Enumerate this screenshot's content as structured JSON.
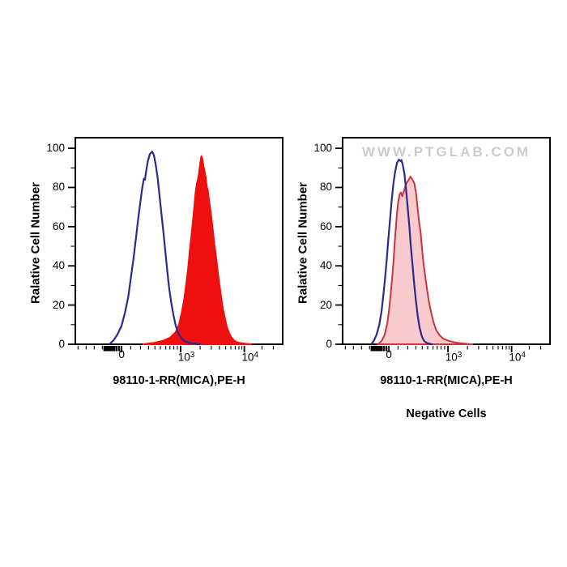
{
  "figure": {
    "background": "#ffffff",
    "frame_color": "#000000",
    "text_color": "#000000",
    "watermark_color": "#cbcbcb"
  },
  "chart_data": [
    {
      "type": "area",
      "panel": "left",
      "title": "",
      "xlabel": "98110-1-RR(MICA),PE-H",
      "ylabel": "Ralative Cell Number",
      "caption": "",
      "watermark": "",
      "ylim": [
        0,
        105
      ],
      "grid": "off",
      "legend": "none",
      "x_axis": {
        "scale": "biexponential-log",
        "major_ticks": [
          {
            "f": 0.223,
            "base": "0",
            "exp": ""
          },
          {
            "f": 0.508,
            "base": "10",
            "exp": "3"
          },
          {
            "f": 0.815,
            "base": "10",
            "exp": "4"
          }
        ],
        "minor_ticks": [
          0.013,
          0.052,
          0.091,
          0.13,
          0.267,
          0.314,
          0.353,
          0.384,
          0.41,
          0.436,
          0.456,
          0.475,
          0.492,
          0.602,
          0.656,
          0.695,
          0.725,
          0.75,
          0.771,
          0.789,
          0.803,
          0.9,
          0.955
        ],
        "cluster_ticks": [
          0.14,
          0.149,
          0.157,
          0.164,
          0.171,
          0.179,
          0.188,
          0.199,
          0.211
        ]
      },
      "y_axis": {
        "ticks": [
          0,
          20,
          40,
          60,
          80,
          100
        ],
        "minor_ticks": [
          10,
          30,
          50,
          70,
          90
        ]
      },
      "series": [
        {
          "name": "red-filled-histogram",
          "style": "filled",
          "stroke": "#ee0f0f",
          "stroke_width": 2,
          "fill": "#ee0f0f",
          "fill_opacity": 1,
          "points": [
            [
              0.327,
              0
            ],
            [
              0.379,
              0.7
            ],
            [
              0.425,
              1.8
            ],
            [
              0.457,
              3.4
            ],
            [
              0.483,
              6
            ],
            [
              0.5,
              10
            ],
            [
              0.513,
              16
            ],
            [
              0.525,
              23
            ],
            [
              0.535,
              31
            ],
            [
              0.544,
              39
            ],
            [
              0.553,
              49
            ],
            [
              0.563,
              58.5
            ],
            [
              0.572,
              68
            ],
            [
              0.579,
              76.5
            ],
            [
              0.586,
              82
            ],
            [
              0.591,
              84
            ],
            [
              0.596,
              87
            ],
            [
              0.603,
              93
            ],
            [
              0.608,
              96
            ],
            [
              0.613,
              94.5
            ],
            [
              0.618,
              91
            ],
            [
              0.624,
              88
            ],
            [
              0.629,
              85
            ],
            [
              0.634,
              80.5
            ],
            [
              0.639,
              78.5
            ],
            [
              0.647,
              72
            ],
            [
              0.655,
              65.5
            ],
            [
              0.663,
              58.5
            ],
            [
              0.67,
              51.5
            ],
            [
              0.678,
              45
            ],
            [
              0.686,
              38
            ],
            [
              0.694,
              31
            ],
            [
              0.702,
              25
            ],
            [
              0.711,
              18.5
            ],
            [
              0.72,
              14
            ],
            [
              0.73,
              9
            ],
            [
              0.742,
              5.5
            ],
            [
              0.755,
              3
            ],
            [
              0.77,
              1.5
            ],
            [
              0.789,
              0.7
            ],
            [
              0.815,
              0.3
            ],
            [
              0.848,
              0
            ]
          ]
        },
        {
          "name": "blue-open-histogram",
          "style": "open",
          "stroke": "#2a2a8c",
          "stroke_width": 2.2,
          "fill": "none",
          "fill_opacity": 0,
          "points": [
            [
              0.164,
              0
            ],
            [
              0.184,
              2
            ],
            [
              0.203,
              5
            ],
            [
              0.223,
              9.5
            ],
            [
              0.239,
              16
            ],
            [
              0.255,
              24
            ],
            [
              0.268,
              34
            ],
            [
              0.281,
              44
            ],
            [
              0.292,
              54
            ],
            [
              0.302,
              63
            ],
            [
              0.313,
              72
            ],
            [
              0.323,
              80
            ],
            [
              0.331,
              84.5
            ],
            [
              0.336,
              84
            ],
            [
              0.341,
              88
            ],
            [
              0.349,
              93
            ],
            [
              0.359,
              97
            ],
            [
              0.37,
              98.3
            ],
            [
              0.379,
              96.5
            ],
            [
              0.388,
              91.5
            ],
            [
              0.397,
              85
            ],
            [
              0.406,
              76
            ],
            [
              0.415,
              67
            ],
            [
              0.425,
              57
            ],
            [
              0.434,
              47.5
            ],
            [
              0.443,
              38
            ],
            [
              0.452,
              29
            ],
            [
              0.462,
              21.5
            ],
            [
              0.473,
              15
            ],
            [
              0.484,
              9.5
            ],
            [
              0.497,
              5.5
            ],
            [
              0.512,
              3
            ],
            [
              0.529,
              1.5
            ],
            [
              0.555,
              0.5
            ],
            [
              0.6,
              0
            ]
          ]
        }
      ]
    },
    {
      "type": "area",
      "panel": "right",
      "title": "",
      "xlabel": "98110-1-RR(MICA),PE-H",
      "ylabel": "Ralative Cell Number",
      "caption": "Negative Cells",
      "watermark": "WWW.PTGLAB.COM",
      "ylim": [
        0,
        105
      ],
      "grid": "off",
      "legend": "none",
      "x_axis": {
        "scale": "biexponential-log",
        "major_ticks": [
          {
            "f": 0.223,
            "base": "0",
            "exp": ""
          },
          {
            "f": 0.508,
            "base": "10",
            "exp": "3"
          },
          {
            "f": 0.815,
            "base": "10",
            "exp": "4"
          }
        ],
        "minor_ticks": [
          0.013,
          0.052,
          0.091,
          0.13,
          0.267,
          0.314,
          0.353,
          0.384,
          0.41,
          0.436,
          0.456,
          0.475,
          0.492,
          0.602,
          0.656,
          0.695,
          0.725,
          0.75,
          0.771,
          0.789,
          0.803,
          0.9,
          0.955
        ],
        "cluster_ticks": [
          0.14,
          0.149,
          0.157,
          0.164,
          0.171,
          0.179,
          0.188,
          0.199,
          0.211
        ]
      },
      "y_axis": {
        "ticks": [
          0,
          20,
          40,
          60,
          80,
          100
        ],
        "minor_ticks": [
          10,
          30,
          50,
          70,
          90
        ]
      },
      "series": [
        {
          "name": "pink-filled-histogram",
          "style": "filled",
          "stroke": "#c9343f",
          "stroke_width": 2,
          "fill": "#f8cacd",
          "fill_opacity": 1,
          "points": [
            [
              0.171,
              0
            ],
            [
              0.19,
              2
            ],
            [
              0.203,
              5
            ],
            [
              0.216,
              11
            ],
            [
              0.225,
              18.5
            ],
            [
              0.233,
              27
            ],
            [
              0.24,
              35
            ],
            [
              0.246,
              43.5
            ],
            [
              0.251,
              52
            ],
            [
              0.257,
              60
            ],
            [
              0.262,
              67
            ],
            [
              0.268,
              72.5
            ],
            [
              0.275,
              76.5
            ],
            [
              0.281,
              77.5
            ],
            [
              0.288,
              75.5
            ],
            [
              0.298,
              79
            ],
            [
              0.307,
              82
            ],
            [
              0.316,
              83.5
            ],
            [
              0.327,
              85.5
            ],
            [
              0.337,
              84
            ],
            [
              0.346,
              82
            ],
            [
              0.355,
              76.5
            ],
            [
              0.363,
              68
            ],
            [
              0.37,
              61.5
            ],
            [
              0.376,
              57
            ],
            [
              0.383,
              49
            ],
            [
              0.389,
              42
            ],
            [
              0.396,
              36.5
            ],
            [
              0.405,
              29.5
            ],
            [
              0.415,
              22.5
            ],
            [
              0.426,
              16.5
            ],
            [
              0.438,
              11.5
            ],
            [
              0.45,
              7.5
            ],
            [
              0.468,
              4.5
            ],
            [
              0.486,
              2.8
            ],
            [
              0.509,
              1.8
            ],
            [
              0.535,
              1.1
            ],
            [
              0.568,
              0.5
            ],
            [
              0.607,
              0.1
            ],
            [
              0.626,
              0
            ]
          ]
        },
        {
          "name": "blue-open-histogram",
          "style": "open",
          "stroke": "#2a2a8c",
          "stroke_width": 2.2,
          "fill": "none",
          "fill_opacity": 0,
          "points": [
            [
              0.138,
              0
            ],
            [
              0.151,
              1.8
            ],
            [
              0.164,
              5
            ],
            [
              0.177,
              10
            ],
            [
              0.188,
              17
            ],
            [
              0.197,
              25.5
            ],
            [
              0.206,
              35
            ],
            [
              0.214,
              45
            ],
            [
              0.221,
              54.5
            ],
            [
              0.229,
              64
            ],
            [
              0.237,
              74
            ],
            [
              0.245,
              82
            ],
            [
              0.253,
              88
            ],
            [
              0.262,
              92.5
            ],
            [
              0.271,
              94.3
            ],
            [
              0.279,
              93.5
            ],
            [
              0.284,
              94
            ],
            [
              0.29,
              91.5
            ],
            [
              0.298,
              87
            ],
            [
              0.306,
              79
            ],
            [
              0.314,
              69.5
            ],
            [
              0.322,
              60
            ],
            [
              0.329,
              50
            ],
            [
              0.337,
              40.5
            ],
            [
              0.345,
              31
            ],
            [
              0.353,
              22.5
            ],
            [
              0.362,
              14.5
            ],
            [
              0.371,
              8.5
            ],
            [
              0.382,
              4
            ],
            [
              0.392,
              1.8
            ],
            [
              0.405,
              0.7
            ],
            [
              0.431,
              0
            ]
          ]
        }
      ]
    }
  ]
}
